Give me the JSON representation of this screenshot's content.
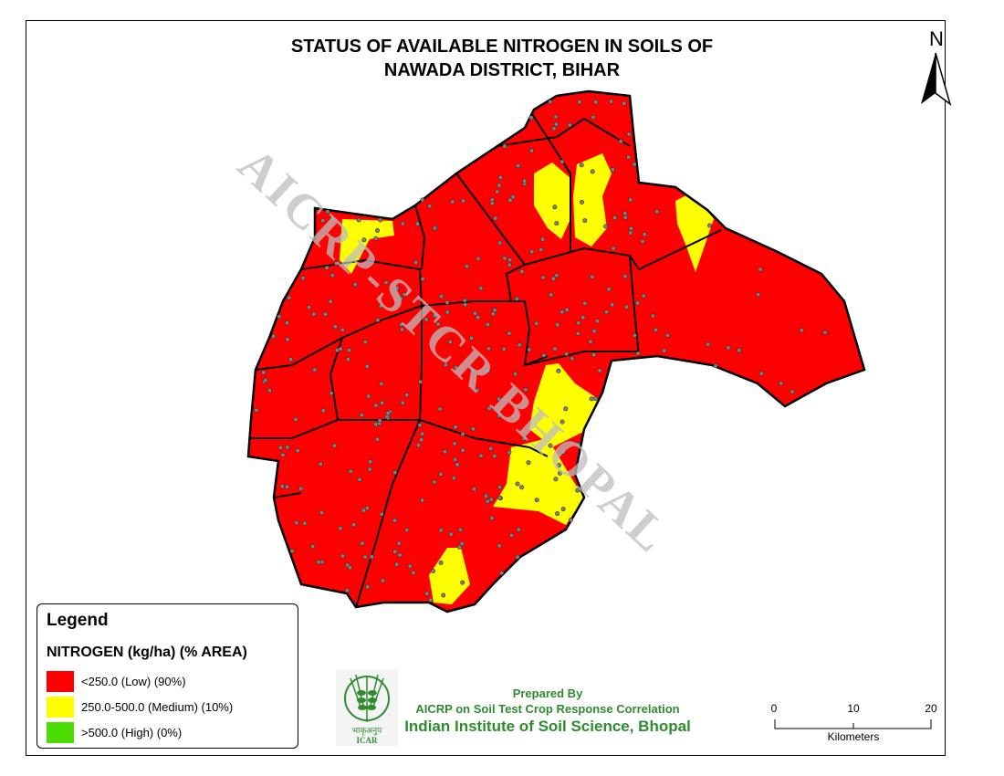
{
  "title_line1": "STATUS OF AVAILABLE NITROGEN IN SOILS OF",
  "title_line2": "NAWADA DISTRICT, BIHAR",
  "north_arrow": {
    "label": "N",
    "icon": "north-arrow-icon"
  },
  "watermark": "AICRP-STCR BHOPAL",
  "legend": {
    "title": "Legend",
    "subtitle": "NITROGEN (kg/ha) (% AREA)",
    "items": [
      {
        "label": "<250.0 (Low) (90%)",
        "color": "#ff0000"
      },
      {
        "label": "250.0-500.0 (Medium) (10%)",
        "color": "#ffff00"
      },
      {
        "label": ">500.0 (High) (0%)",
        "color": "#4cdc00"
      }
    ]
  },
  "credits": {
    "line1": "Prepared By",
    "line2": "AICRP on Soil Test Crop Response Correlation",
    "line3": "Indian Institute of Soil Science, Bhopal",
    "color": "#2e8b2e"
  },
  "logo": {
    "text_hindi": "भाकृअनुप",
    "text": "ICAR"
  },
  "scale_bar": {
    "ticks": [
      "0",
      "10",
      "20"
    ],
    "unit": "Kilometers"
  },
  "colors": {
    "low": "#ff0000",
    "medium": "#ffff00",
    "high": "#4cdc00",
    "boundary": "#000000",
    "sample_point": "#808080"
  }
}
